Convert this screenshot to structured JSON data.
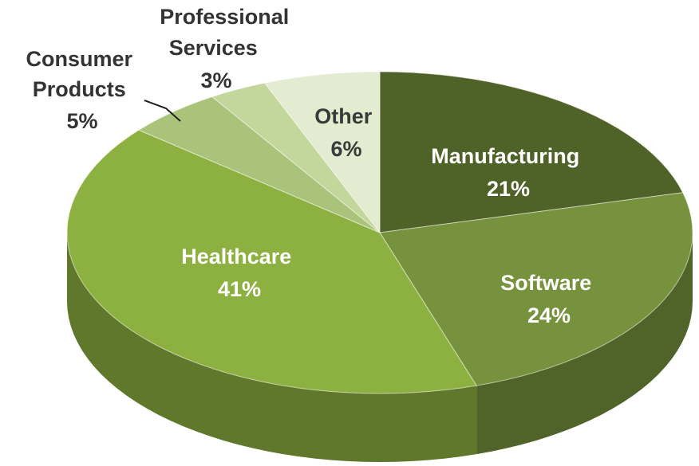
{
  "chart_data": {
    "type": "pie",
    "style": "3d",
    "slices": [
      {
        "name": "Manufacturing",
        "value": 21,
        "label": "21%",
        "color": "#4f6228"
      },
      {
        "name": "Software",
        "value": 24,
        "label": "24%",
        "color": "#76923c"
      },
      {
        "name": "Healthcare",
        "value": 41,
        "label": "41%",
        "color": "#8db141"
      },
      {
        "name": "Consumer Products",
        "value": 5,
        "label": "5%",
        "color": "#a9c47a"
      },
      {
        "name": "Professional Services",
        "value": 3,
        "label": "3%",
        "color": "#c3d69b"
      },
      {
        "name": "Other",
        "value": 6,
        "label": "6%",
        "color": "#e3ebd0"
      }
    ],
    "labels": {
      "manufacturing": {
        "line1": "Manufacturing",
        "pct": "21%"
      },
      "software": {
        "line1": "Software",
        "pct": "24%"
      },
      "healthcare": {
        "line1": "Healthcare",
        "pct": "41%"
      },
      "consumer": {
        "line1": "Consumer",
        "line2": "Products",
        "pct": "5%"
      },
      "professional": {
        "line1": "Professional",
        "line2": "Services",
        "pct": "3%"
      },
      "other": {
        "line1": "Other",
        "pct": "6%"
      }
    }
  }
}
